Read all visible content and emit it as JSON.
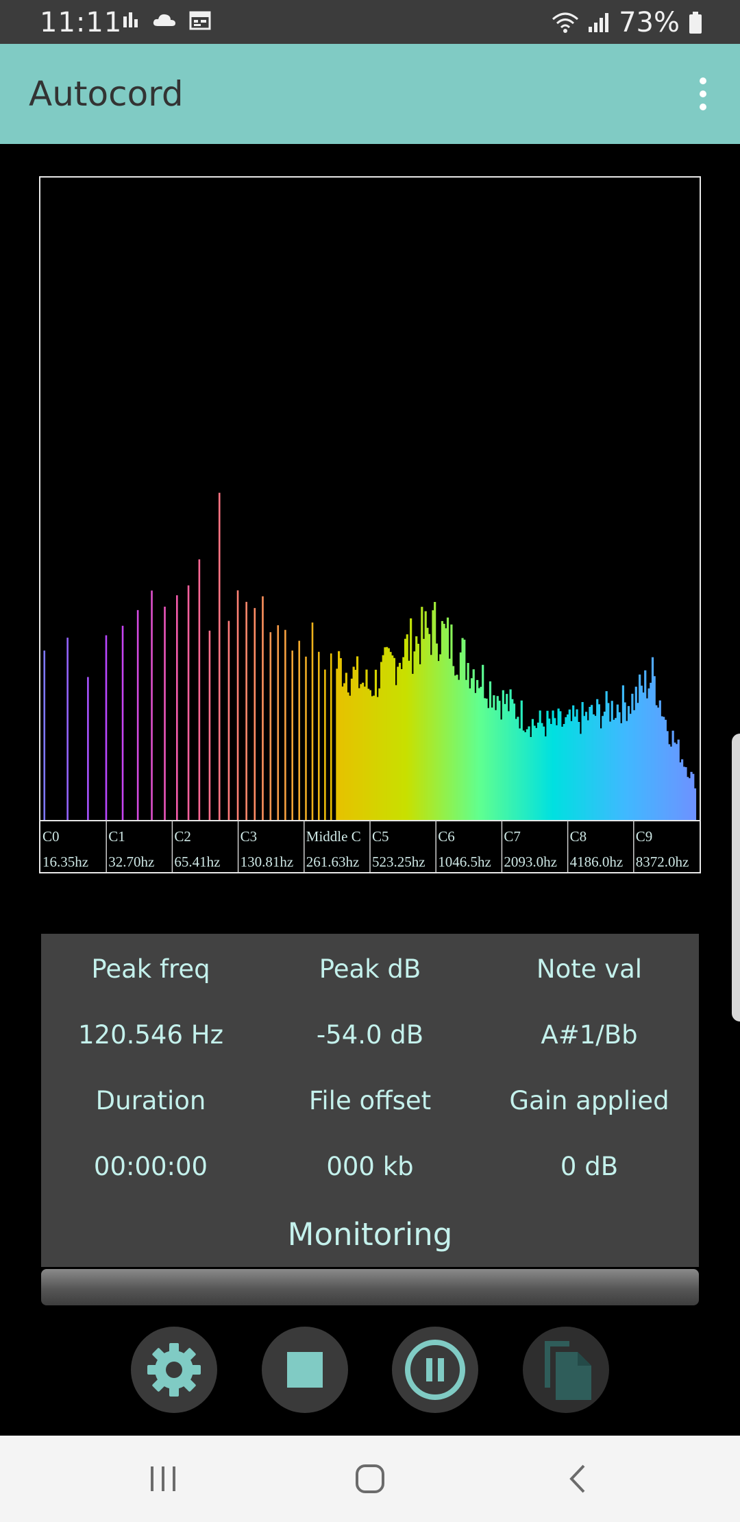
{
  "status_bar": {
    "time": "11:11",
    "battery_percent": "73%",
    "left_icons": [
      "bar-chart-icon",
      "cloud-icon",
      "calendar-icon"
    ],
    "right_icons": [
      "wifi-icon",
      "signal-icon",
      "battery-icon"
    ]
  },
  "app_bar": {
    "title": "Autocord",
    "background": "#80cbc4",
    "menu_icon": "more-vert-icon"
  },
  "chart_data": {
    "type": "bar",
    "x_scale": "log",
    "xlim_hz": [
      16.35,
      9000
    ],
    "bands": [
      {
        "note": "C0",
        "freq": "16.35hz"
      },
      {
        "note": "C1",
        "freq": "32.70hz"
      },
      {
        "note": "C2",
        "freq": "65.41hz"
      },
      {
        "note": "C3",
        "freq": "130.81hz"
      },
      {
        "note": "Middle C",
        "freq": "261.63hz"
      },
      {
        "note": "C5",
        "freq": "523.25hz"
      },
      {
        "note": "C6",
        "freq": "1046.5hz"
      },
      {
        "note": "C7",
        "freq": "2093.0hz"
      },
      {
        "note": "C8",
        "freq": "4186.0hz"
      },
      {
        "note": "C9",
        "freq": "8372.0hz"
      }
    ],
    "ylim": [
      0,
      1
    ],
    "profile_x": [
      0.0,
      0.05,
      0.1,
      0.15,
      0.2,
      0.25,
      0.3,
      0.35,
      0.4,
      0.45,
      0.5,
      0.55,
      0.6,
      0.65,
      0.7,
      0.75,
      0.8,
      0.85,
      0.9,
      0.93,
      0.95,
      0.98,
      1.0
    ],
    "profile_y": [
      0.28,
      0.3,
      0.32,
      0.36,
      0.42,
      0.44,
      0.38,
      0.36,
      0.3,
      0.26,
      0.22,
      0.28,
      0.32,
      0.26,
      0.2,
      0.16,
      0.16,
      0.18,
      0.2,
      0.24,
      0.16,
      0.09,
      0.05
    ],
    "colors": [
      "#7a7aff",
      "#c040ff",
      "#ff60a0",
      "#ff9060",
      "#e8c000",
      "#c8e000",
      "#60ff90",
      "#00e0e0",
      "#40b8ff",
      "#7090ff"
    ],
    "grid": false
  },
  "stats": {
    "peak_freq_label": "Peak freq",
    "peak_freq_value": "120.546 Hz",
    "peak_db_label": "Peak dB",
    "peak_db_value": "-54.0 dB",
    "note_label": "Note val",
    "note_value": "A#1/Bb",
    "duration_label": "Duration",
    "duration_value": "00:00:00",
    "offset_label": "File offset",
    "offset_value": "000 kb",
    "gain_label": "Gain applied",
    "gain_value": "0 dB",
    "status": "Monitoring"
  },
  "progress": {
    "fraction": 0
  },
  "controls": [
    {
      "icon": "gear-icon",
      "name": "settings-button"
    },
    {
      "icon": "stop-icon",
      "name": "stop-button"
    },
    {
      "icon": "pause-icon",
      "name": "pause-button"
    },
    {
      "icon": "file-copy-icon",
      "name": "files-button"
    }
  ],
  "nav_bar": [
    "recent-apps-icon",
    "home-icon",
    "back-icon"
  ]
}
